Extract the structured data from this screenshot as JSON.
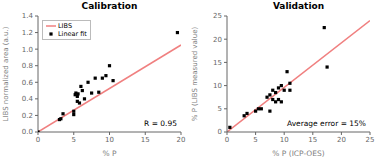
{
  "chart_data": [
    {
      "type": "scatter",
      "title": "Calibration",
      "x_label": "% P",
      "y_label": "LIBS normalized area (a.u.)",
      "xlim": [
        0,
        20
      ],
      "ylim": [
        0,
        1.4
      ],
      "xticks": [
        0,
        5,
        10,
        15,
        20
      ],
      "yticks": [
        {
          "value": 0.0,
          "label": "0.0"
        },
        0.2,
        0.4,
        0.6,
        0.8,
        {
          "value": 1.0,
          "label": "1.0"
        },
        1.2,
        1.4
      ],
      "grid": false,
      "legend": "upper left",
      "annotations": [
        "R = 0.95"
      ],
      "series": [
        {
          "name": "LIBS",
          "type": "line",
          "color": "#F08080",
          "x": [
            0,
            20
          ],
          "values": [
            0.0,
            1.05
          ]
        },
        {
          "name": "Linear fit",
          "type": "scatter",
          "marker": "square",
          "color": "black",
          "x": [
            0.0,
            3.0,
            3.2,
            3.5,
            5.0,
            5.0,
            5.2,
            5.3,
            5.5,
            5.5,
            5.6,
            5.8,
            6.0,
            6.2,
            6.5,
            7.0,
            7.5,
            8.0,
            8.5,
            9.0,
            9.5,
            10.0,
            10.5,
            19.5
          ],
          "values": [
            0.0,
            0.15,
            0.16,
            0.22,
            0.21,
            0.25,
            0.45,
            0.47,
            0.37,
            0.43,
            0.46,
            0.35,
            0.55,
            0.5,
            0.4,
            0.6,
            0.47,
            0.65,
            0.48,
            0.65,
            0.68,
            0.8,
            0.62,
            1.2
          ]
        }
      ]
    },
    {
      "type": "scatter",
      "title": "Validation",
      "x_label": "% P (ICP-OES)",
      "y_label": "% P (LIBS measured value)",
      "xlim": [
        0,
        25
      ],
      "ylim": [
        0,
        25
      ],
      "xticks": [
        0,
        5,
        10,
        15,
        20,
        25
      ],
      "yticks": [
        0,
        5,
        10,
        15,
        20,
        25
      ],
      "grid": false,
      "annotations": [
        "Average error = 15%"
      ],
      "series": [
        {
          "type": "line",
          "color": "#F08080",
          "x": [
            0,
            25
          ],
          "values": [
            0,
            24
          ]
        },
        {
          "type": "scatter",
          "marker": "square",
          "color": "black",
          "x": [
            0.5,
            3.0,
            3.5,
            5.0,
            5.5,
            6.0,
            7.0,
            7.5,
            7.5,
            8.0,
            8.0,
            8.5,
            8.5,
            9.0,
            9.0,
            9.5,
            9.5,
            10.0,
            10.5,
            11.0,
            11.0,
            17.0,
            17.5
          ],
          "values": [
            1.0,
            3.5,
            4.0,
            4.5,
            5.0,
            5.0,
            7.5,
            8.0,
            4.5,
            9.0,
            7.0,
            8.5,
            6.5,
            9.5,
            7.0,
            10.0,
            6.5,
            9.0,
            13.0,
            10.5,
            9.0,
            22.5,
            14.0
          ]
        }
      ]
    }
  ]
}
